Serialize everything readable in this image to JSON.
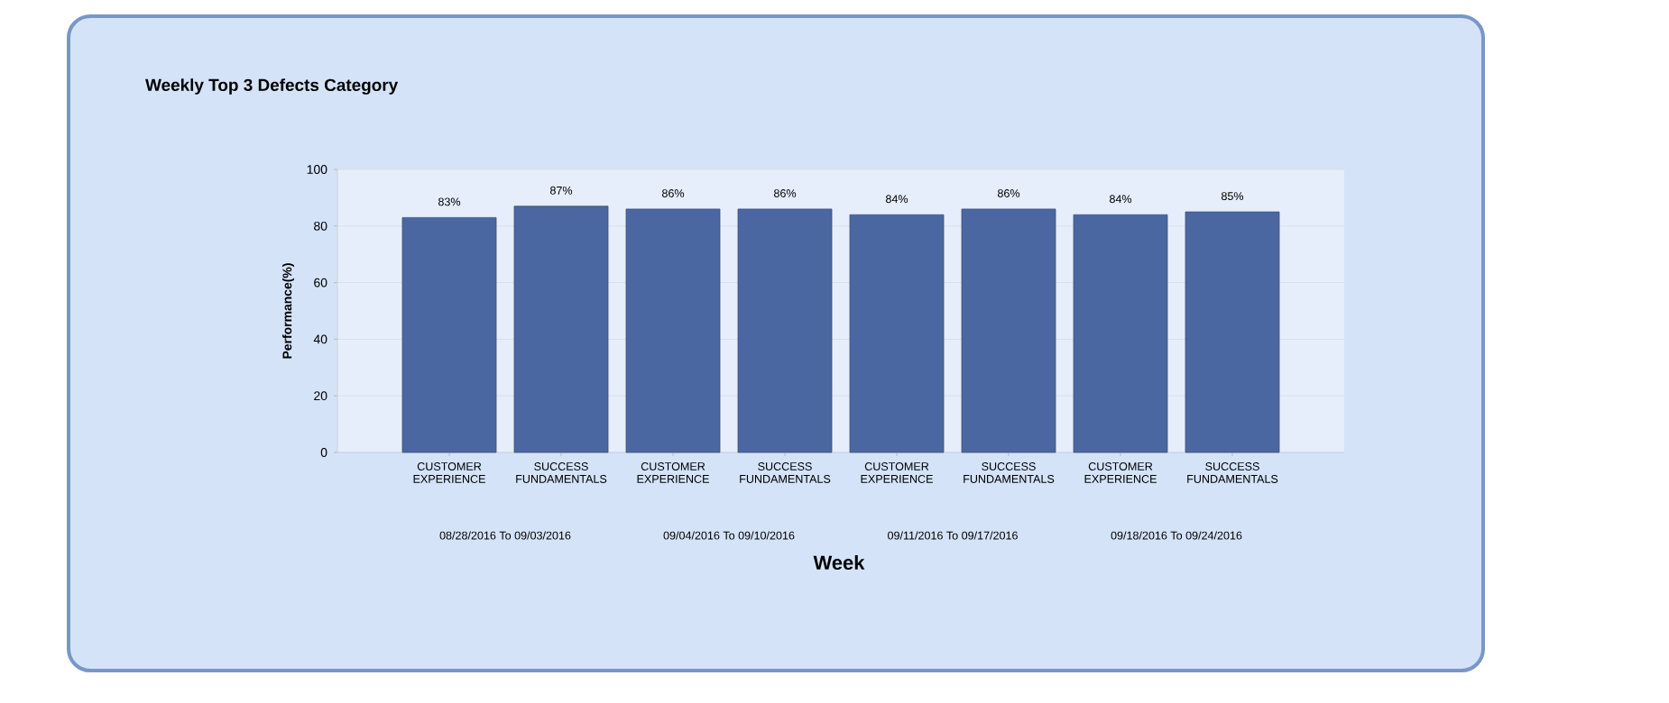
{
  "chart_data": {
    "type": "bar",
    "title": "Weekly Top 3 Defects Category",
    "xlabel": "Week",
    "ylabel": "Performance(%)",
    "categories": [
      "CUSTOMER EXPERIENCE",
      "SUCCESS FUNDAMENTALS",
      "CUSTOMER EXPERIENCE",
      "SUCCESS FUNDAMENTALS",
      "CUSTOMER EXPERIENCE",
      "SUCCESS FUNDAMENTALS",
      "CUSTOMER EXPERIENCE",
      "SUCCESS FUNDAMENTALS"
    ],
    "values": [
      83,
      87,
      86,
      86,
      84,
      86,
      84,
      85
    ],
    "value_labels": [
      "83%",
      "87%",
      "86%",
      "86%",
      "84%",
      "86%",
      "84%",
      "85%"
    ],
    "color": "#4a67a1",
    "ylim": [
      0,
      100
    ],
    "yticks": [
      0,
      20,
      40,
      60,
      80,
      100
    ],
    "grid": "y",
    "annotations": [
      "08/28/2016 To 09/03/2016",
      "09/04/2016 To 09/10/2016",
      "09/11/2016 To 09/17/2016",
      "09/18/2016 To 09/24/2016"
    ]
  }
}
